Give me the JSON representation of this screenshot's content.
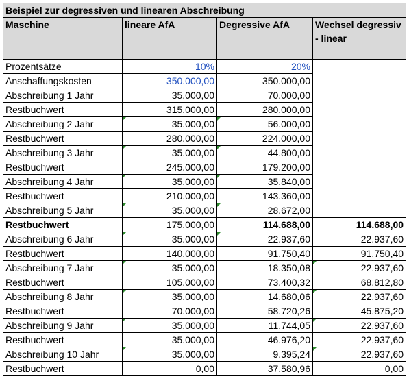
{
  "title": "Beispiel zur degressiven und linearen Abschreibung",
  "headers": [
    "Maschine",
    "lineare AfA",
    "Degressive AfA",
    "Wechsel degressiv - linear"
  ],
  "colors": {
    "header_bg": "#d9d9d9",
    "input_blue": "#1f4fbf",
    "flag_green": "#2e8b2e"
  },
  "rows": [
    {
      "label": "Prozentsätze",
      "linear": "10%",
      "degressive": "20%",
      "switch": ""
    },
    {
      "label": "Anschaffungskosten",
      "linear": "350.000,00",
      "degressive": "350.000,00",
      "switch": ""
    },
    {
      "label": "Abschreibung 1 Jahr",
      "linear": "35.000,00",
      "degressive": "70.000,00",
      "switch": ""
    },
    {
      "label": "Restbuchwert",
      "linear": "315.000,00",
      "degressive": "280.000,00",
      "switch": ""
    },
    {
      "label": "Abschreibung 2 Jahr",
      "linear": "35.000,00",
      "degressive": "56.000,00",
      "switch": ""
    },
    {
      "label": "Restbuchwert",
      "linear": "280.000,00",
      "degressive": "224.000,00",
      "switch": ""
    },
    {
      "label": "Abschreibung 3 Jahr",
      "linear": "35.000,00",
      "degressive": "44.800,00",
      "switch": ""
    },
    {
      "label": "Restbuchwert",
      "linear": "245.000,00",
      "degressive": "179.200,00",
      "switch": ""
    },
    {
      "label": "Abschreibung 4 Jahr",
      "linear": "35.000,00",
      "degressive": "35.840,00",
      "switch": ""
    },
    {
      "label": "Restbuchwert",
      "linear": "210.000,00",
      "degressive": "143.360,00",
      "switch": ""
    },
    {
      "label": "Abschreibung 5 Jahr",
      "linear": "35.000,00",
      "degressive": "28.672,00",
      "switch": ""
    },
    {
      "label": "Restbuchwert",
      "linear": "175.000,00",
      "degressive": "114.688,00",
      "switch": "114.688,00"
    },
    {
      "label": "Abschreibung 6 Jahr",
      "linear": "35.000,00",
      "degressive": "22.937,60",
      "switch": "22.937,60"
    },
    {
      "label": "Restbuchwert",
      "linear": "140.000,00",
      "degressive": "91.750,40",
      "switch": "91.750,40"
    },
    {
      "label": "Abschreibung 7 Jahr",
      "linear": "35.000,00",
      "degressive": "18.350,08",
      "switch": "22.937,60"
    },
    {
      "label": "Restbuchwert",
      "linear": "105.000,00",
      "degressive": "73.400,32",
      "switch": "68.812,80"
    },
    {
      "label": "Abschreibung 8 Jahr",
      "linear": "35.000,00",
      "degressive": "14.680,06",
      "switch": "22.937,60"
    },
    {
      "label": "Restbuchwert",
      "linear": "70.000,00",
      "degressive": "58.720,26",
      "switch": "45.875,20"
    },
    {
      "label": "Abschreibung 9 Jahr",
      "linear": "35.000,00",
      "degressive": "11.744,05",
      "switch": "22.937,60"
    },
    {
      "label": "Restbuchwert",
      "linear": "35.000,00",
      "degressive": "46.976,20",
      "switch": "22.937,60"
    },
    {
      "label": "Abschreibung 10 Jahr",
      "linear": "35.000,00",
      "degressive": "9.395,24",
      "switch": "22.937,60"
    },
    {
      "label": "Restbuchwert",
      "linear": "0,00",
      "degressive": "37.580,96",
      "switch": "0,00"
    }
  ]
}
